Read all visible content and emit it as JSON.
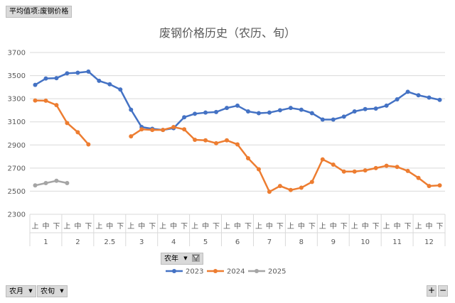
{
  "pivot": {
    "value_field": "平均值项:废钢价格",
    "year_field": "农年",
    "month_field": "农月",
    "period_field": "农旬",
    "expand_label": "+",
    "collapse_label": "−"
  },
  "chart_data": {
    "type": "line",
    "title": "废钢价格历史（农历、旬）",
    "xlabel": "",
    "ylabel": "",
    "ylim": [
      2300,
      3700
    ],
    "yticks": [
      2300,
      2500,
      2700,
      2900,
      3100,
      3300,
      3500,
      3700
    ],
    "grid": true,
    "legend_position": "bottom",
    "groups": [
      {
        "label": "1",
        "periods": [
          "上",
          "中",
          "下"
        ]
      },
      {
        "label": "2",
        "periods": [
          "上",
          "中",
          "下"
        ]
      },
      {
        "label": "2.5",
        "periods": [
          "上",
          "中",
          "下"
        ]
      },
      {
        "label": "3",
        "periods": [
          "上",
          "中",
          "下"
        ]
      },
      {
        "label": "4",
        "periods": [
          "上",
          "中",
          "下"
        ]
      },
      {
        "label": "5",
        "periods": [
          "上",
          "中",
          "下"
        ]
      },
      {
        "label": "6",
        "periods": [
          "上",
          "中",
          "下"
        ]
      },
      {
        "label": "7",
        "periods": [
          "上",
          "中",
          "下"
        ]
      },
      {
        "label": "8",
        "periods": [
          "上",
          "中",
          "下"
        ]
      },
      {
        "label": "9",
        "periods": [
          "上",
          "中",
          "下"
        ]
      },
      {
        "label": "10",
        "periods": [
          "上",
          "中",
          "下"
        ]
      },
      {
        "label": "11",
        "periods": [
          "上",
          "中",
          "下"
        ]
      },
      {
        "label": "12",
        "periods": [
          "上",
          "中",
          "下"
        ]
      }
    ],
    "series": [
      {
        "name": "2023",
        "color": "#4472c4",
        "values": [
          3420,
          3475,
          3478,
          3520,
          3525,
          3535,
          3455,
          3425,
          3380,
          3205,
          3055,
          3040,
          3030,
          3045,
          3140,
          3170,
          3180,
          3185,
          3220,
          3240,
          3190,
          3175,
          3180,
          3200,
          3220,
          3205,
          3175,
          3120,
          3120,
          3145,
          3190,
          3210,
          3215,
          3240,
          3295,
          3360,
          3330,
          3310,
          3290
        ]
      },
      {
        "name": "2024",
        "color": "#ed7d31",
        "values": [
          3285,
          3283,
          3245,
          3090,
          3010,
          2905,
          null,
          null,
          null,
          2975,
          3035,
          3030,
          3030,
          3055,
          3035,
          2945,
          2940,
          2915,
          2940,
          2905,
          2785,
          2690,
          2495,
          2545,
          2510,
          2530,
          2580,
          2775,
          2730,
          2670,
          2670,
          2680,
          2700,
          2720,
          2710,
          2675,
          2615,
          2545,
          2550
        ]
      },
      {
        "name": "2025",
        "color": "#a5a5a5",
        "values": [
          2550,
          2570,
          2590,
          2570,
          null,
          null,
          null,
          null,
          null,
          null,
          null,
          null,
          null,
          null,
          null,
          null,
          null,
          null,
          null,
          null,
          null,
          null,
          null,
          null,
          null,
          null,
          null,
          null,
          null,
          null,
          null,
          null,
          null,
          null,
          null,
          null,
          null,
          null,
          null
        ]
      }
    ]
  }
}
